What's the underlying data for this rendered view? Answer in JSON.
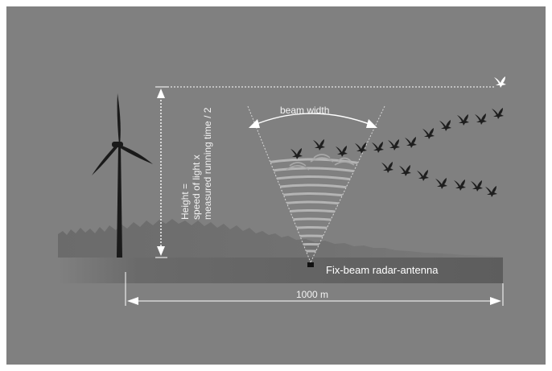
{
  "labels": {
    "height_line1": "Height =",
    "height_line2": "speed of light x",
    "height_line3": "measured running time / 2",
    "beam_width": "beam width",
    "antenna": "Fix-beam radar-antenna",
    "distance": "1000 m"
  },
  "icons": {
    "wind_turbine": "wind-turbine-icon",
    "bird": "bird-icon",
    "radar_antenna": "radar-antenna-icon"
  },
  "colors": {
    "background": "#808080",
    "ground_band": "#5f5f5f",
    "trees": "#6a6a6a",
    "turbine": "#1a1a1a",
    "birds": "#1e1e1e",
    "lines": "#ffffff"
  }
}
